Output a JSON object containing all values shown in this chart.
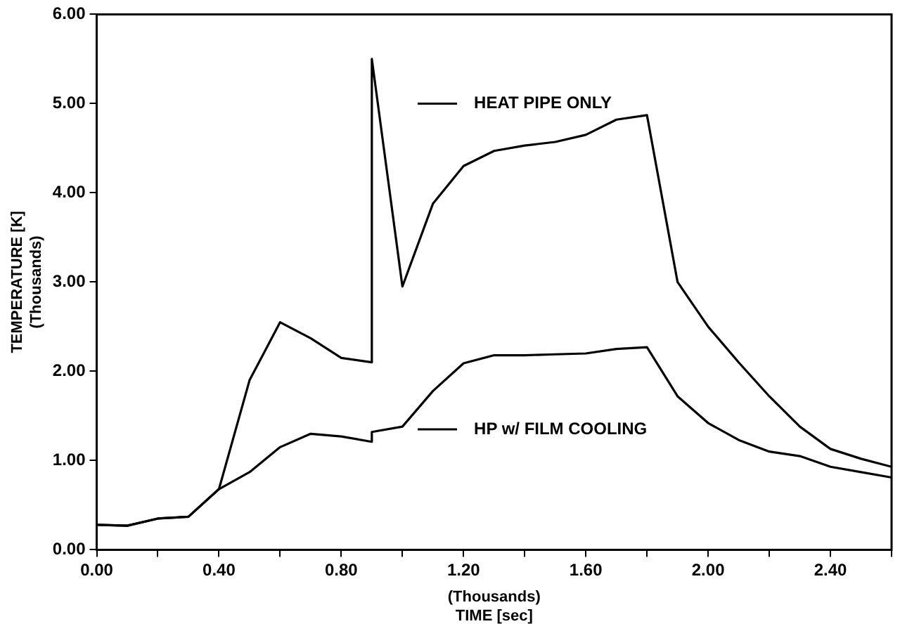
{
  "chart_data": {
    "type": "line",
    "xlabel": "(Thousands)\nTIME [sec]",
    "ylabel": "TEMPERATURE [K]\n(Thousands)",
    "xlim": [
      0,
      2.6
    ],
    "ylim": [
      0,
      6
    ],
    "xticks": [
      {
        "value": 0,
        "label": "0.00"
      },
      {
        "value": 0.2,
        "label": null
      },
      {
        "value": 0.4,
        "label": "0.40"
      },
      {
        "value": 0.6,
        "label": null
      },
      {
        "value": 0.8,
        "label": "0.80"
      },
      {
        "value": 1.0,
        "label": null
      },
      {
        "value": 1.2,
        "label": "1.20"
      },
      {
        "value": 1.4,
        "label": null
      },
      {
        "value": 1.6,
        "label": "1.60"
      },
      {
        "value": 1.8,
        "label": null
      },
      {
        "value": 2.0,
        "label": "2.00"
      },
      {
        "value": 2.2,
        "label": null
      },
      {
        "value": 2.4,
        "label": "2.40"
      },
      {
        "value": 2.6,
        "label": null
      }
    ],
    "yticks": [
      {
        "value": 0,
        "label": "0.00"
      },
      {
        "value": 1,
        "label": "1.00"
      },
      {
        "value": 2,
        "label": "2.00"
      },
      {
        "value": 3,
        "label": "3.00"
      },
      {
        "value": 4,
        "label": "4.00"
      },
      {
        "value": 5,
        "label": "5.00"
      },
      {
        "value": 6,
        "label": "6.00"
      }
    ],
    "grid": false,
    "legend": "center",
    "marker": "none",
    "line_style": "solid",
    "series": [
      {
        "name": "HEAT PIPE ONLY",
        "color": "#000000",
        "x": [
          0,
          0.1,
          0.2,
          0.3,
          0.4,
          0.5,
          0.6,
          0.7,
          0.8,
          0.9,
          0.9,
          1.0,
          1.1,
          1.2,
          1.3,
          1.4,
          1.5,
          1.6,
          1.7,
          1.8,
          1.9,
          2.0,
          2.1,
          2.2,
          2.3,
          2.4,
          2.5,
          2.6
        ],
        "values": [
          0.28,
          0.27,
          0.35,
          0.37,
          0.68,
          1.9,
          2.55,
          2.37,
          2.15,
          2.1,
          5.5,
          2.95,
          3.88,
          4.3,
          4.47,
          4.53,
          4.57,
          4.65,
          4.82,
          4.87,
          3.0,
          2.5,
          2.1,
          1.72,
          1.38,
          1.13,
          1.02,
          0.93
        ]
      },
      {
        "name": "HP w/ FILM COOLING",
        "color": "#000000",
        "x": [
          0,
          0.1,
          0.2,
          0.3,
          0.4,
          0.5,
          0.6,
          0.7,
          0.8,
          0.9,
          0.9,
          1.0,
          1.1,
          1.2,
          1.3,
          1.4,
          1.5,
          1.6,
          1.7,
          1.8,
          1.9,
          2.0,
          2.1,
          2.2,
          2.3,
          2.4,
          2.5,
          2.6
        ],
        "values": [
          0.28,
          0.27,
          0.35,
          0.37,
          0.68,
          0.87,
          1.15,
          1.3,
          1.27,
          1.21,
          1.32,
          1.38,
          1.78,
          2.09,
          2.18,
          2.18,
          2.19,
          2.2,
          2.25,
          2.27,
          1.72,
          1.42,
          1.23,
          1.1,
          1.05,
          0.93,
          0.87,
          0.81
        ]
      }
    ]
  }
}
